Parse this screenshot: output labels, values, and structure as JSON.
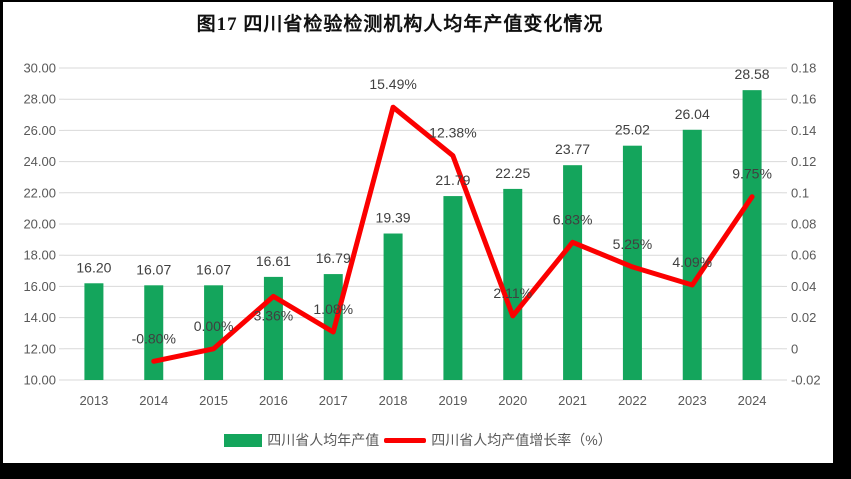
{
  "title": "图17  四川省检验检测机构人均年产值变化情况",
  "colors": {
    "bar": "#14A55C",
    "line": "#FB0000",
    "grid": "#D9D9D9",
    "tick_text": "#595959",
    "data_label_text": "#404040",
    "title_text": "#111111",
    "frame": "#000000",
    "background": "#FFFFFF"
  },
  "chart_data": {
    "type": "bar",
    "subtype": "combo-bar-line-dual-axis",
    "title": "图17  四川省检验检测机构人均年产值变化情况",
    "categories": [
      "2013",
      "2014",
      "2015",
      "2016",
      "2017",
      "2018",
      "2019",
      "2020",
      "2021",
      "2022",
      "2023",
      "2024"
    ],
    "series": [
      {
        "name": "四川省人均年产值",
        "type": "bar",
        "axis": "left",
        "color": "#14A55C",
        "values": [
          16.2,
          16.07,
          16.07,
          16.61,
          16.79,
          19.39,
          21.79,
          22.25,
          23.77,
          25.02,
          26.04,
          28.58
        ],
        "data_labels": [
          "16.20",
          "16.07",
          "16.07",
          "16.61",
          "16.79",
          "19.39",
          "21.79",
          "22.25",
          "23.77",
          "25.02",
          "26.04",
          "28.58"
        ]
      },
      {
        "name": "四川省人均产值增长率（%）",
        "type": "line",
        "axis": "right",
        "color": "#FB0000",
        "values": [
          null,
          -0.008,
          0.0,
          0.0336,
          0.0108,
          0.1549,
          0.1238,
          0.0211,
          0.0683,
          0.0525,
          0.0409,
          0.0975
        ],
        "data_labels": [
          null,
          "-0.80%",
          "0.00%",
          "3.36%",
          "1.08%",
          "15.49%",
          "12.38%",
          "2.11%",
          "6.83%",
          "5.25%",
          "4.09%",
          "9.75%"
        ],
        "label_side": [
          null,
          "above",
          "above",
          "below",
          "above",
          "above",
          "above",
          "above",
          "above",
          "above",
          "above",
          "above"
        ]
      }
    ],
    "left_axis": {
      "min": 10,
      "max": 30,
      "step": 2,
      "tick_labels": [
        "30.00",
        "28.00",
        "26.00",
        "24.00",
        "22.00",
        "20.00",
        "18.00",
        "16.00",
        "14.00",
        "12.00",
        "10.00"
      ]
    },
    "right_axis": {
      "min": -0.02,
      "max": 0.18,
      "step": 0.02,
      "tick_labels": [
        "0.18",
        "0.16",
        "0.14",
        "0.12",
        "0.1",
        "0.08",
        "0.06",
        "0.04",
        "0.02",
        "0",
        "-0.02"
      ]
    },
    "grid": true,
    "legend_position": "bottom",
    "legend": [
      "四川省人均年产值",
      "四川省人均产值增长率（%）"
    ]
  }
}
